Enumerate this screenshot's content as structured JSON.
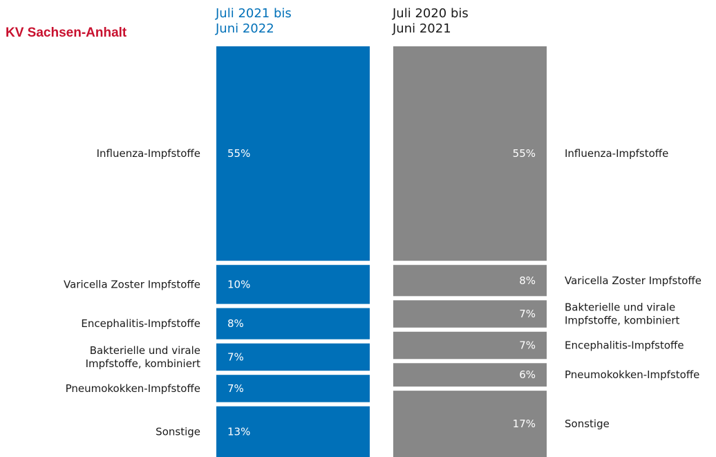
{
  "colors": {
    "title": "#c8102e",
    "current": "#0070b8",
    "previous": "#878787",
    "label_text": "#1a1a1a",
    "value_text": "#ffffff"
  },
  "header": {
    "title": "KV Sachsen-Anhalt"
  },
  "chart_data": {
    "type": "bar",
    "subtype": "stacked-100-percent-column-comparison",
    "value_unit": "%",
    "columns": [
      {
        "key": "current",
        "name_lines": [
          "Juli 2021 bis",
          "Juni 2022"
        ],
        "color": "#0070b8",
        "label_side": "left",
        "value_align": "left",
        "segments": [
          {
            "label_lines": [
              "Influenza-Impfstoffe"
            ],
            "value": 55,
            "value_label": "55%"
          },
          {
            "label_lines": [
              "Varicella Zoster Impfstoffe"
            ],
            "value": 10,
            "value_label": "10%"
          },
          {
            "label_lines": [
              "Encephalitis-Impfstoffe"
            ],
            "value": 8,
            "value_label": "8%"
          },
          {
            "label_lines": [
              "Bakterielle und virale",
              "Impfstoffe, kombiniert"
            ],
            "value": 7,
            "value_label": "7%"
          },
          {
            "label_lines": [
              "Pneumokokken-Impfstoffe"
            ],
            "value": 7,
            "value_label": "7%"
          },
          {
            "label_lines": [
              "Sonstige"
            ],
            "value": 13,
            "value_label": "13%"
          }
        ]
      },
      {
        "key": "previous",
        "name_lines": [
          "Juli 2020 bis",
          "Juni 2021"
        ],
        "color": "#878787",
        "label_side": "right",
        "value_align": "right",
        "segments": [
          {
            "label_lines": [
              "Influenza-Impfstoffe"
            ],
            "value": 55,
            "value_label": "55%"
          },
          {
            "label_lines": [
              "Varicella Zoster Impfstoffe"
            ],
            "value": 8,
            "value_label": "8%"
          },
          {
            "label_lines": [
              "Bakterielle und virale",
              "Impfstoffe, kombiniert"
            ],
            "value": 7,
            "value_label": "7%"
          },
          {
            "label_lines": [
              "Encephalitis-Impfstoffe"
            ],
            "value": 7,
            "value_label": "7%"
          },
          {
            "label_lines": [
              "Pneumokokken-Impfstoffe"
            ],
            "value": 6,
            "value_label": "6%"
          },
          {
            "label_lines": [
              "Sonstige"
            ],
            "value": 17,
            "value_label": "17%"
          }
        ]
      }
    ]
  }
}
